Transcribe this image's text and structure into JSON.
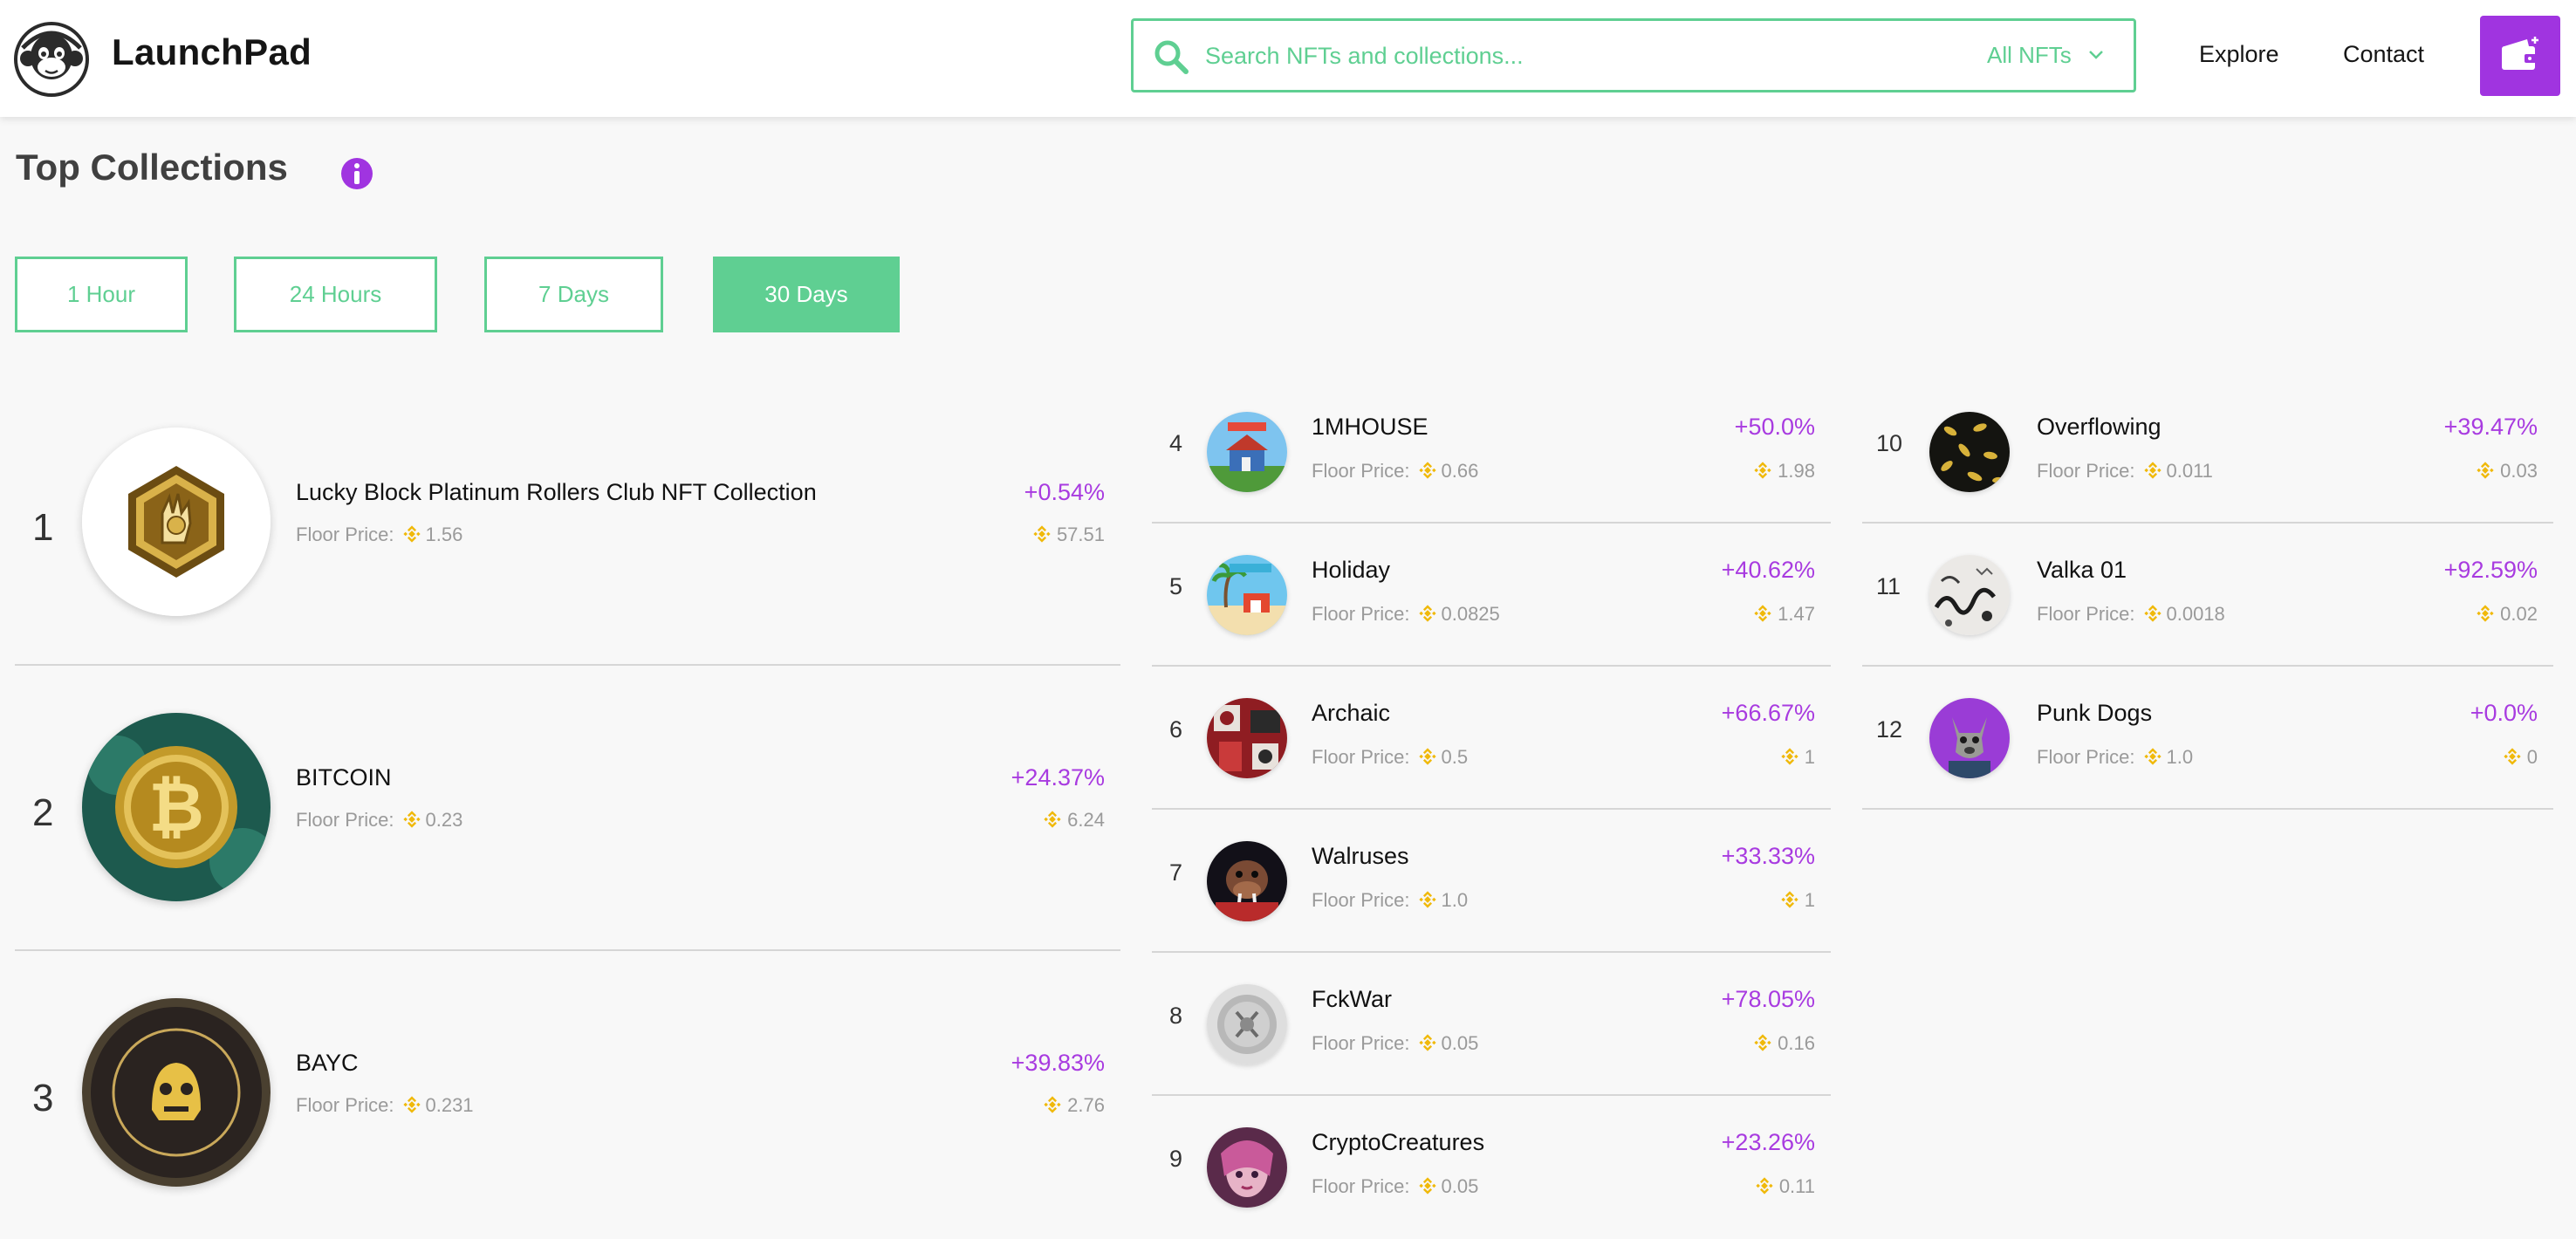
{
  "header": {
    "brand": "LaunchPad",
    "search_placeholder": "Search NFTs and collections...",
    "filter_label": "All NFTs",
    "nav": [
      "Explore",
      "Contact"
    ]
  },
  "page": {
    "title": "Top Collections",
    "tabs": [
      "1 Hour",
      "24 Hours",
      "7 Days",
      "30 Days"
    ],
    "active_tab": "30 Days",
    "floor_label": "Floor Price:"
  },
  "colors": {
    "accent_green": "#5fcf92",
    "accent_purple": "#a034e0",
    "bnb_yellow": "#f0b90b"
  },
  "collections": [
    {
      "rank": "1",
      "name": "Lucky Block Platinum Rollers Club NFT Collection",
      "floor": "1.56",
      "change": "+0.54%",
      "volume": "57.51"
    },
    {
      "rank": "2",
      "name": "BITCOIN",
      "floor": "0.23",
      "change": "+24.37%",
      "volume": "6.24"
    },
    {
      "rank": "3",
      "name": "BAYC",
      "floor": "0.231",
      "change": "+39.83%",
      "volume": "2.76"
    },
    {
      "rank": "4",
      "name": "1MHOUSE",
      "floor": "0.66",
      "change": "+50.0%",
      "volume": "1.98"
    },
    {
      "rank": "5",
      "name": "Holiday",
      "floor": "0.0825",
      "change": "+40.62%",
      "volume": "1.47"
    },
    {
      "rank": "6",
      "name": "Archaic",
      "floor": "0.5",
      "change": "+66.67%",
      "volume": "1"
    },
    {
      "rank": "7",
      "name": "Walruses",
      "floor": "1.0",
      "change": "+33.33%",
      "volume": "1"
    },
    {
      "rank": "8",
      "name": "FckWar",
      "floor": "0.05",
      "change": "+78.05%",
      "volume": "0.16"
    },
    {
      "rank": "9",
      "name": "CryptoCreatures",
      "floor": "0.05",
      "change": "+23.26%",
      "volume": "0.11"
    },
    {
      "rank": "10",
      "name": "Overflowing",
      "floor": "0.011",
      "change": "+39.47%",
      "volume": "0.03"
    },
    {
      "rank": "11",
      "name": "Valka 01",
      "floor": "0.0018",
      "change": "+92.59%",
      "volume": "0.02"
    },
    {
      "rank": "12",
      "name": "Punk Dogs",
      "floor": "1.0",
      "change": "+0.0%",
      "volume": "0"
    }
  ]
}
